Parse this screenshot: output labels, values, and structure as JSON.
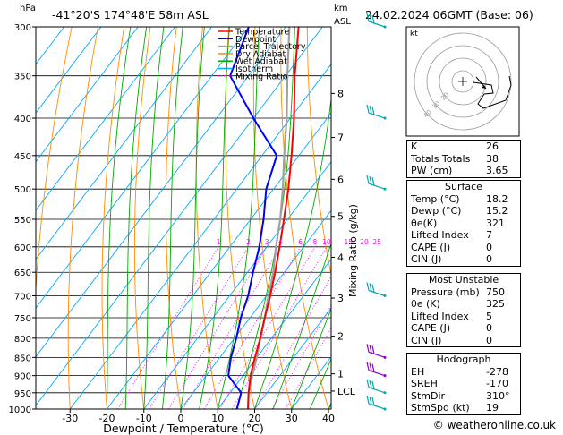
{
  "header": {
    "location": "-41°20'S  174°48'E  58m  ASL",
    "date": "24.02.2024  06GMT  (Base: 06)",
    "hpa_label": "hPa",
    "km_label": "km",
    "asl_label": "ASL"
  },
  "legend": [
    {
      "label": "Temperature",
      "color": "#ff0000"
    },
    {
      "label": "Dewpoint",
      "color": "#0000ff"
    },
    {
      "label": "Parcel Trajectory",
      "color": "#a0a0a0"
    },
    {
      "label": "Dry Adiabat",
      "color": "#ff8c00"
    },
    {
      "label": "Wet Adiabat",
      "color": "#00aa00"
    },
    {
      "label": "Isotherm",
      "color": "#00aaff"
    },
    {
      "label": "Mixing Ratio",
      "color": "#ff00ff"
    }
  ],
  "chart_data": {
    "type": "skew-t",
    "xlabel": "Dewpoint / Temperature (°C)",
    "ylabel_right": "Mixing Ratio (g/kg)",
    "x_ticks": [
      -30,
      -20,
      -10,
      0,
      10,
      20,
      30,
      40
    ],
    "pressure_levels": [
      300,
      350,
      400,
      450,
      500,
      550,
      600,
      650,
      700,
      750,
      800,
      850,
      900,
      950,
      1000
    ],
    "km_levels": [
      {
        "km": "8",
        "p": 370
      },
      {
        "km": "7",
        "p": 425
      },
      {
        "km": "6",
        "p": 485
      },
      {
        "km": "5",
        "p": 545
      },
      {
        "km": "4",
        "p": 620
      },
      {
        "km": "3",
        "p": 705
      },
      {
        "km": "2",
        "p": 795
      },
      {
        "km": "1",
        "p": 895
      },
      {
        "km": "LCL",
        "p": 945
      }
    ],
    "mixing_ratio_labels": [
      "1",
      "2",
      "3",
      "4",
      "6",
      "8",
      "10",
      "15",
      "20",
      "25"
    ],
    "mixing_ratio_values": [
      1,
      2,
      3,
      4,
      6,
      8,
      10,
      15,
      20,
      25
    ],
    "temperature": [
      [
        1000,
        18.2
      ],
      [
        950,
        15.0
      ],
      [
        900,
        12.0
      ],
      [
        850,
        9.5
      ],
      [
        800,
        7.0
      ],
      [
        750,
        4.0
      ],
      [
        700,
        1.0
      ],
      [
        650,
        -2.5
      ],
      [
        600,
        -6.5
      ],
      [
        550,
        -11.0
      ],
      [
        500,
        -16.0
      ],
      [
        450,
        -22.0
      ],
      [
        400,
        -29.0
      ],
      [
        350,
        -37.5
      ],
      [
        300,
        -46.5
      ]
    ],
    "dewpoint": [
      [
        1000,
        15.2
      ],
      [
        950,
        13.0
      ],
      [
        900,
        6.0
      ],
      [
        850,
        3.0
      ],
      [
        800,
        0.5
      ],
      [
        750,
        -2.5
      ],
      [
        700,
        -5.0
      ],
      [
        650,
        -8.5
      ],
      [
        600,
        -12.0
      ],
      [
        550,
        -16.5
      ],
      [
        500,
        -22.0
      ],
      [
        450,
        -26.0
      ],
      [
        400,
        -40.0
      ],
      [
        350,
        -55.0
      ],
      [
        300,
        -60.0
      ]
    ],
    "parcel": [
      [
        1000,
        18.2
      ],
      [
        950,
        15.0
      ],
      [
        900,
        12.5
      ],
      [
        850,
        10.0
      ],
      [
        800,
        7.0
      ],
      [
        750,
        4.0
      ],
      [
        700,
        0.5
      ],
      [
        650,
        -3.0
      ],
      [
        600,
        -7.5
      ],
      [
        550,
        -12.0
      ],
      [
        500,
        -17.5
      ],
      [
        450,
        -24.0
      ],
      [
        400,
        -31.0
      ],
      [
        350,
        -39.5
      ],
      [
        300,
        -49.0
      ]
    ],
    "wind_barbs": [
      {
        "p": 300
      },
      {
        "p": 400
      },
      {
        "p": 500
      },
      {
        "p": 700
      },
      {
        "p": 850
      },
      {
        "p": 900
      },
      {
        "p": 950
      },
      {
        "p": 1000
      }
    ],
    "hodograph_rings": [
      "20",
      "30",
      "40"
    ],
    "hodograph_label": "kt"
  },
  "indices": [
    {
      "label": "K",
      "value": "26"
    },
    {
      "label": "Totals Totals",
      "value": "38"
    },
    {
      "label": "PW (cm)",
      "value": "3.65"
    }
  ],
  "surface": {
    "title": "Surface",
    "rows": [
      {
        "label": "Temp (°C)",
        "value": "18.2"
      },
      {
        "label": "Dewp (°C)",
        "value": "15.2"
      },
      {
        "label": "θe(K)",
        "value": "321"
      },
      {
        "label": "Lifted Index",
        "value": "7"
      },
      {
        "label": "CAPE (J)",
        "value": "0"
      },
      {
        "label": "CIN (J)",
        "value": "0"
      }
    ]
  },
  "most_unstable": {
    "title": "Most Unstable",
    "rows": [
      {
        "label": "Pressure (mb)",
        "value": "750"
      },
      {
        "label": "θe (K)",
        "value": "325"
      },
      {
        "label": "Lifted Index",
        "value": "5"
      },
      {
        "label": "CAPE (J)",
        "value": "0"
      },
      {
        "label": "CIN (J)",
        "value": "0"
      }
    ]
  },
  "hodograph": {
    "title": "Hodograph",
    "rows": [
      {
        "label": "EH",
        "value": "-278"
      },
      {
        "label": "SREH",
        "value": "-170"
      },
      {
        "label": "StmDir",
        "value": "310°"
      },
      {
        "label": "StmSpd (kt)",
        "value": "19"
      }
    ]
  },
  "footer": {
    "site": "© weatheronline.co.uk"
  }
}
